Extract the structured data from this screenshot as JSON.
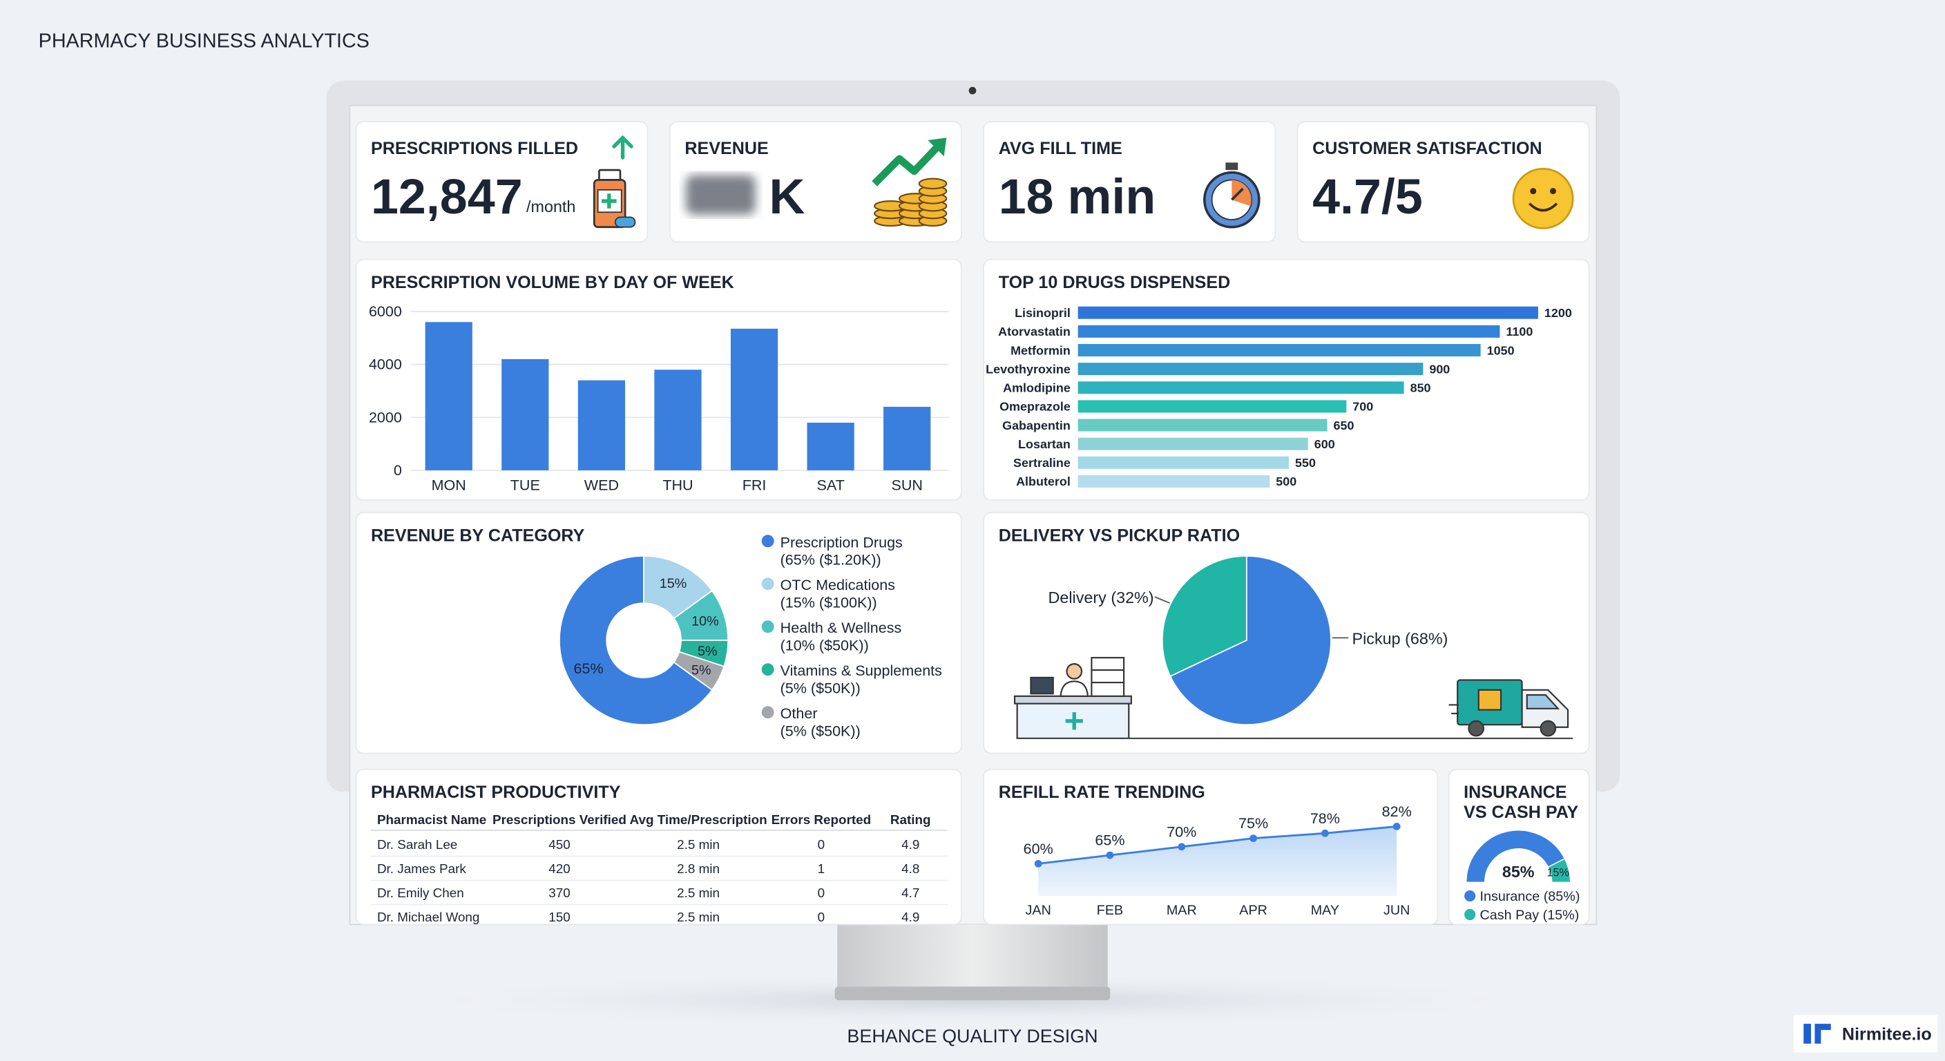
{
  "header": {
    "title": "PHARMACY BUSINESS ANALYTICS"
  },
  "kpis": [
    {
      "label": "PRESCRIPTIONS FILLED",
      "value": "12,847",
      "unit": "/month"
    },
    {
      "label": "REVENUE",
      "value": "K"
    },
    {
      "label": "AVG FILL TIME",
      "value": "18 min"
    },
    {
      "label": "CUSTOMER SATISFACTION",
      "value": "4.7/5"
    }
  ],
  "chart_data": [
    {
      "type": "bar",
      "title": "PRESCRIPTION VOLUME BY DAY OF WEEK",
      "categories": [
        "MON",
        "TUE",
        "WED",
        "THU",
        "FRI",
        "SAT",
        "SUN"
      ],
      "values": [
        5600,
        4200,
        3400,
        3800,
        5350,
        1800,
        2400
      ],
      "color": "#3a7fde",
      "ylim": [
        0,
        6000
      ],
      "yticks": [
        0,
        2000,
        4000,
        6000
      ],
      "grid": true
    },
    {
      "type": "hbar",
      "title": "TOP 10 DRUGS DISPENSED",
      "categories": [
        "Lisinopril",
        "Atorvastatin",
        "Metformin",
        "Levothyroxine",
        "Amlodipine",
        "Omeprazole",
        "Gabapentin",
        "Losartan",
        "Sertraline",
        "Albuterol"
      ],
      "values": [
        1200,
        1100,
        1050,
        900,
        850,
        700,
        650,
        600,
        550,
        500
      ],
      "colors": [
        "#2f74dc",
        "#3383d8",
        "#3793d2",
        "#389fca",
        "#2cb3bd",
        "#27c0b2",
        "#67cbc3",
        "#8ed2d8",
        "#a3d8e6",
        "#b5dcef"
      ]
    },
    {
      "type": "donut",
      "title": "REVENUE BY CATEGORY",
      "categories": [
        "Prescription Drugs",
        "OTC Medications",
        "Health & Wellness",
        "Vitamins & Supplements",
        "Other"
      ],
      "details": [
        "(65% ($1.20K))",
        "(15% ($100K))",
        "(10% ($50K))",
        "(5% ($50K))",
        "(5% ($50K))"
      ],
      "values": [
        65,
        15,
        10,
        5,
        5
      ],
      "value_labels": [
        "65%",
        "15%",
        "10%",
        "5%",
        "5%"
      ],
      "colors": [
        "#3a7fde",
        "#a8d4ec",
        "#4cc3c0",
        "#26b39a",
        "#a3a6ab"
      ]
    },
    {
      "type": "pie",
      "title": "DELIVERY VS PICKUP RATIO",
      "categories": [
        "Delivery",
        "Pickup"
      ],
      "labels": [
        "Delivery (32%)",
        "Pickup (68%)"
      ],
      "values": [
        32,
        68
      ],
      "colors": [
        "#20b5a5",
        "#3a7fde"
      ]
    },
    {
      "type": "line",
      "title": "REFILL RATE TRENDING",
      "categories": [
        "JAN",
        "FEB",
        "MAR",
        "APR",
        "MAY",
        "JUN"
      ],
      "values": [
        60,
        65,
        70,
        75,
        78,
        82
      ],
      "value_labels": [
        "60%",
        "65%",
        "70%",
        "75%",
        "78%",
        "82%"
      ],
      "color": "#3a7fde"
    },
    {
      "type": "gauge",
      "title": [
        "INSURANCE",
        "VS CASH PAY"
      ],
      "categories": [
        "Insurance (85%)",
        "Cash Pay (15%)"
      ],
      "values": [
        85,
        15
      ],
      "value_labels": [
        "85%",
        "15%"
      ],
      "colors": [
        "#3a7fde",
        "#26b8a8"
      ]
    }
  ],
  "table": {
    "title": "PHARMACIST PRODUCTIVITY",
    "columns": [
      "Pharmacist Name",
      "Prescriptions Verified",
      "Avg Time/Prescription",
      "Errors Reported",
      "Rating"
    ],
    "rows": [
      [
        "Dr. Sarah Lee",
        450,
        "2.5 min",
        0,
        4.9
      ],
      [
        "Dr. James Park",
        420,
        "2.8 min",
        1,
        4.8
      ],
      [
        "Dr. Emily Chen",
        370,
        "2.5 min",
        0,
        4.7
      ],
      [
        "Dr. Michael Wong",
        150,
        "2.5 min",
        0,
        4.9
      ]
    ]
  },
  "footer": {
    "tagline": "BEHANCE QUALITY DESIGN",
    "brand": "Nirmitee.io"
  }
}
